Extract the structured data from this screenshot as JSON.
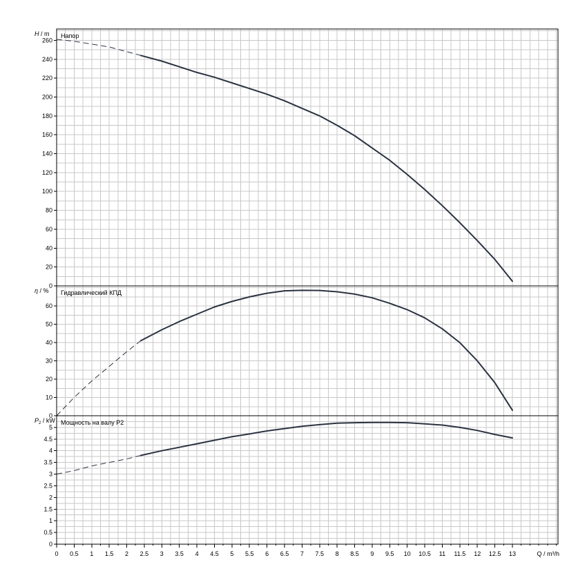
{
  "chart_data": [
    {
      "type": "line",
      "panel": "head",
      "title": "Напор",
      "ylabel_main": "H",
      "ylabel_unit": " / m",
      "xlabel": "Q / m³/h",
      "xlim": [
        0,
        14.3
      ],
      "ylim": [
        0,
        272
      ],
      "xticks": [
        0,
        0.5,
        1,
        1.5,
        2,
        2.5,
        3,
        3.5,
        4,
        4.5,
        5,
        5.5,
        6,
        6.5,
        7,
        7.5,
        8,
        8.5,
        9,
        9.5,
        10,
        10.5,
        11,
        11.5,
        12,
        12.5,
        13
      ],
      "yticks": [
        0,
        20,
        40,
        60,
        80,
        100,
        120,
        140,
        160,
        180,
        200,
        220,
        240,
        260
      ],
      "series": [
        {
          "style": "dashed",
          "x": [
            0,
            0.5,
            1,
            1.5,
            2,
            2.4
          ],
          "y": [
            261,
            259,
            256,
            253,
            248,
            244
          ]
        },
        {
          "style": "solid",
          "x": [
            2.4,
            3,
            3.5,
            4,
            4.5,
            5,
            5.5,
            6,
            6.5,
            7,
            7.5,
            8,
            8.5,
            9,
            9.5,
            10,
            10.5,
            11,
            11.5,
            12,
            12.5,
            13
          ],
          "y": [
            244,
            238,
            232,
            226,
            221,
            215,
            209,
            203,
            196,
            188,
            180,
            170,
            159,
            146,
            133,
            118,
            102,
            85,
            67,
            48,
            28,
            5
          ]
        }
      ]
    },
    {
      "type": "line",
      "panel": "efficiency",
      "title": "Гидравлический КПД",
      "ylabel_main": "η",
      "ylabel_unit": " / %",
      "xlim": [
        0,
        14.3
      ],
      "ylim": [
        0,
        71
      ],
      "yticks": [
        0,
        10,
        20,
        30,
        40,
        50,
        60
      ],
      "series": [
        {
          "style": "dashed",
          "x": [
            0,
            0.5,
            1,
            1.5,
            2,
            2.4
          ],
          "y": [
            0,
            10,
            19,
            27,
            35,
            41
          ]
        },
        {
          "style": "solid",
          "x": [
            2.4,
            3,
            3.5,
            4,
            4.5,
            5,
            5.5,
            6,
            6.5,
            7,
            7.5,
            8,
            8.5,
            9,
            9.5,
            10,
            10.5,
            11,
            11.5,
            12,
            12.5,
            13
          ],
          "y": [
            41,
            47,
            51.5,
            55.5,
            59.5,
            62.5,
            65,
            67,
            68.3,
            68.6,
            68.5,
            67.8,
            66.5,
            64.5,
            61.5,
            58,
            53.5,
            47.5,
            40,
            30,
            18,
            3
          ]
        }
      ]
    },
    {
      "type": "line",
      "panel": "power",
      "title": "Мощность на валу P2",
      "ylabel_main": "P",
      "ylabel_sub": "2",
      "ylabel_unit": " / kW",
      "xlim": [
        0,
        14.3
      ],
      "ylim": [
        0,
        5.5
      ],
      "yticks": [
        0,
        0.5,
        1,
        1.5,
        2,
        2.5,
        3,
        3.5,
        4,
        4.5,
        5
      ],
      "series": [
        {
          "style": "dashed",
          "x": [
            0,
            0.5,
            1,
            1.5,
            2,
            2.4
          ],
          "y": [
            3.0,
            3.15,
            3.35,
            3.5,
            3.65,
            3.8
          ]
        },
        {
          "style": "solid",
          "x": [
            2.4,
            3,
            3.5,
            4,
            4.5,
            5,
            5.5,
            6,
            6.5,
            7,
            7.5,
            8,
            8.5,
            9,
            9.5,
            10,
            10.5,
            11,
            11.5,
            12,
            12.5,
            13
          ],
          "y": [
            3.8,
            4.0,
            4.15,
            4.3,
            4.45,
            4.6,
            4.72,
            4.85,
            4.95,
            5.05,
            5.12,
            5.18,
            5.2,
            5.21,
            5.21,
            5.2,
            5.15,
            5.1,
            5.0,
            4.87,
            4.7,
            4.55
          ]
        }
      ]
    }
  ]
}
